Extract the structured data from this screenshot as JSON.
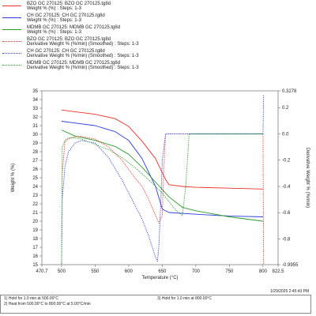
{
  "legend": [
    {
      "line1": "BZO GC 270125: BZO GC 270125.tg8d",
      "line2": "Weight % (%) : Steps: 1-3",
      "color": "#e8312a",
      "dash": "solid"
    },
    {
      "line1": "CH GC 270125: CH GC 270125.tg8d",
      "line2": "Weight % (%) : Steps: 1-3",
      "color": "#2b3fd6",
      "dash": "solid"
    },
    {
      "line1": "MDMB GC 270125: MDMB GC 270125.tg8d",
      "line2": "Weight % (%) : Steps: 1-3",
      "color": "#2a9a2a",
      "dash": "solid"
    },
    {
      "line1": "BZO GC 270125: BZO GC 270125.tg8d",
      "line2": "Derivative Weight % (%/min) (Smoothed) : Steps: 1-3",
      "color": "#e8312a",
      "dash": "dotted"
    },
    {
      "line1": "CH GC 270125: CH GC 270125.tg8d",
      "line2": "Derivative Weight % (%/min) (Smoothed) : Steps: 1-3",
      "color": "#2b3fd6",
      "dash": "dotted"
    },
    {
      "line1": "MDMB GC 270125: MDMB GC 270125.tg8d",
      "line2": "Derivative Weight % (%/min) (Smoothed) : Steps: 1-3",
      "color": "#2a9a2a",
      "dash": "dotted"
    }
  ],
  "timestamp": "1/29/2025 2:45:43 PM",
  "notes": {
    "n1": "1)  Hold for 1.0 min at 500.00°C",
    "n2": "2)  Heat from 500.00°C to 800.00°C at 5.00°C/min",
    "n3": "3)  Hold for 1.0 min at 800.00°C"
  },
  "chart_data": {
    "type": "line",
    "xlabel": "Temperature (°C)",
    "ylabel_left": "Weight % (%)",
    "ylabel_right": "Derivative Weight % (%/min)",
    "xlim": [
      470.7,
      822.5
    ],
    "ylim_left": [
      15,
      35
    ],
    "ylim_right": [
      -0.9955,
      0.3278
    ],
    "x_ticks": [
      "470.7",
      "500",
      "550",
      "600",
      "650",
      "700",
      "750",
      "800",
      "822.5"
    ],
    "y_left_ticks": [
      "15",
      "16",
      "17",
      "18",
      "19",
      "20",
      "21",
      "22",
      "23",
      "24",
      "25",
      "26",
      "27",
      "28",
      "29",
      "30",
      "31",
      "32",
      "33",
      "34",
      "35"
    ],
    "y_right_ticks": [
      "0.3278",
      "0.2",
      "0.0",
      "-0.2",
      "-0.4",
      "-0.6",
      "-0.8",
      "-0.9955"
    ],
    "series": [
      {
        "name": "BZO GC 270125",
        "axis": "left",
        "color": "#e8312a",
        "dash": "solid",
        "x": [
          500,
          520,
          550,
          580,
          600,
          620,
          640,
          655,
          660,
          680,
          700,
          750,
          800
        ],
        "y": [
          32.8,
          32.6,
          32.3,
          31.8,
          30.9,
          29.2,
          27.2,
          24.8,
          24.2,
          24.0,
          23.9,
          23.8,
          23.7
        ]
      },
      {
        "name": "CH GC 270125",
        "axis": "left",
        "color": "#2b3fd6",
        "dash": "solid",
        "x": [
          500,
          520,
          550,
          580,
          600,
          620,
          640,
          650,
          660,
          700,
          750,
          800
        ],
        "y": [
          31.5,
          31.3,
          31.0,
          30.3,
          29.3,
          27.2,
          24.0,
          21.4,
          21.0,
          20.8,
          20.6,
          20.5
        ]
      },
      {
        "name": "MDMB GC 270125",
        "axis": "left",
        "color": "#2a9a2a",
        "dash": "solid",
        "x": [
          500,
          520,
          550,
          580,
          600,
          620,
          640,
          660,
          680,
          700,
          750,
          800
        ],
        "y": [
          30.5,
          29.8,
          29.3,
          28.6,
          27.7,
          26.2,
          24.5,
          22.8,
          21.6,
          21.2,
          20.5,
          20.0
        ]
      },
      {
        "name": "BZO GC 270125",
        "axis": "right",
        "color": "#e8312a",
        "dash": "dotted",
        "x": [
          500,
          501,
          505,
          510,
          520,
          530,
          550,
          570,
          590,
          600,
          610,
          620,
          630,
          640,
          645,
          650,
          652,
          655,
          700,
          750,
          790,
          800,
          801
        ],
        "y": [
          -0.99,
          -0.3,
          -0.06,
          -0.04,
          -0.02,
          -0.02,
          -0.04,
          -0.1,
          -0.2,
          -0.27,
          -0.34,
          -0.4,
          -0.5,
          -0.62,
          -0.68,
          -0.62,
          -0.3,
          0.0,
          0.0,
          0.0,
          0.0,
          0.0,
          -0.99
        ]
      },
      {
        "name": "CH GC 270125",
        "axis": "right",
        "color": "#2b3fd6",
        "dash": "dotted",
        "x": [
          500,
          501,
          505,
          510,
          520,
          530,
          550,
          570,
          590,
          610,
          620,
          630,
          640,
          643,
          645,
          648,
          650,
          655,
          700,
          750,
          790,
          800,
          801
        ],
        "y": [
          -0.99,
          -0.5,
          -0.25,
          -0.14,
          -0.07,
          -0.05,
          -0.07,
          -0.18,
          -0.35,
          -0.55,
          -0.65,
          -0.78,
          -0.94,
          -0.97,
          -0.85,
          -0.5,
          -0.2,
          0.0,
          0.0,
          0.0,
          0.0,
          0.0,
          0.3
        ]
      },
      {
        "name": "MDMB GC 270125",
        "axis": "right",
        "color": "#2a9a2a",
        "dash": "dotted",
        "x": [
          500,
          501,
          505,
          510,
          520,
          530,
          550,
          570,
          590,
          610,
          630,
          650,
          670,
          680,
          685,
          690,
          700,
          750,
          800
        ],
        "y": [
          -0.99,
          -0.1,
          -0.05,
          -0.03,
          -0.03,
          -0.04,
          -0.08,
          -0.12,
          -0.18,
          -0.26,
          -0.35,
          -0.45,
          -0.58,
          -0.62,
          -0.4,
          0.0,
          0.0,
          0.0,
          0.0
        ]
      }
    ]
  }
}
